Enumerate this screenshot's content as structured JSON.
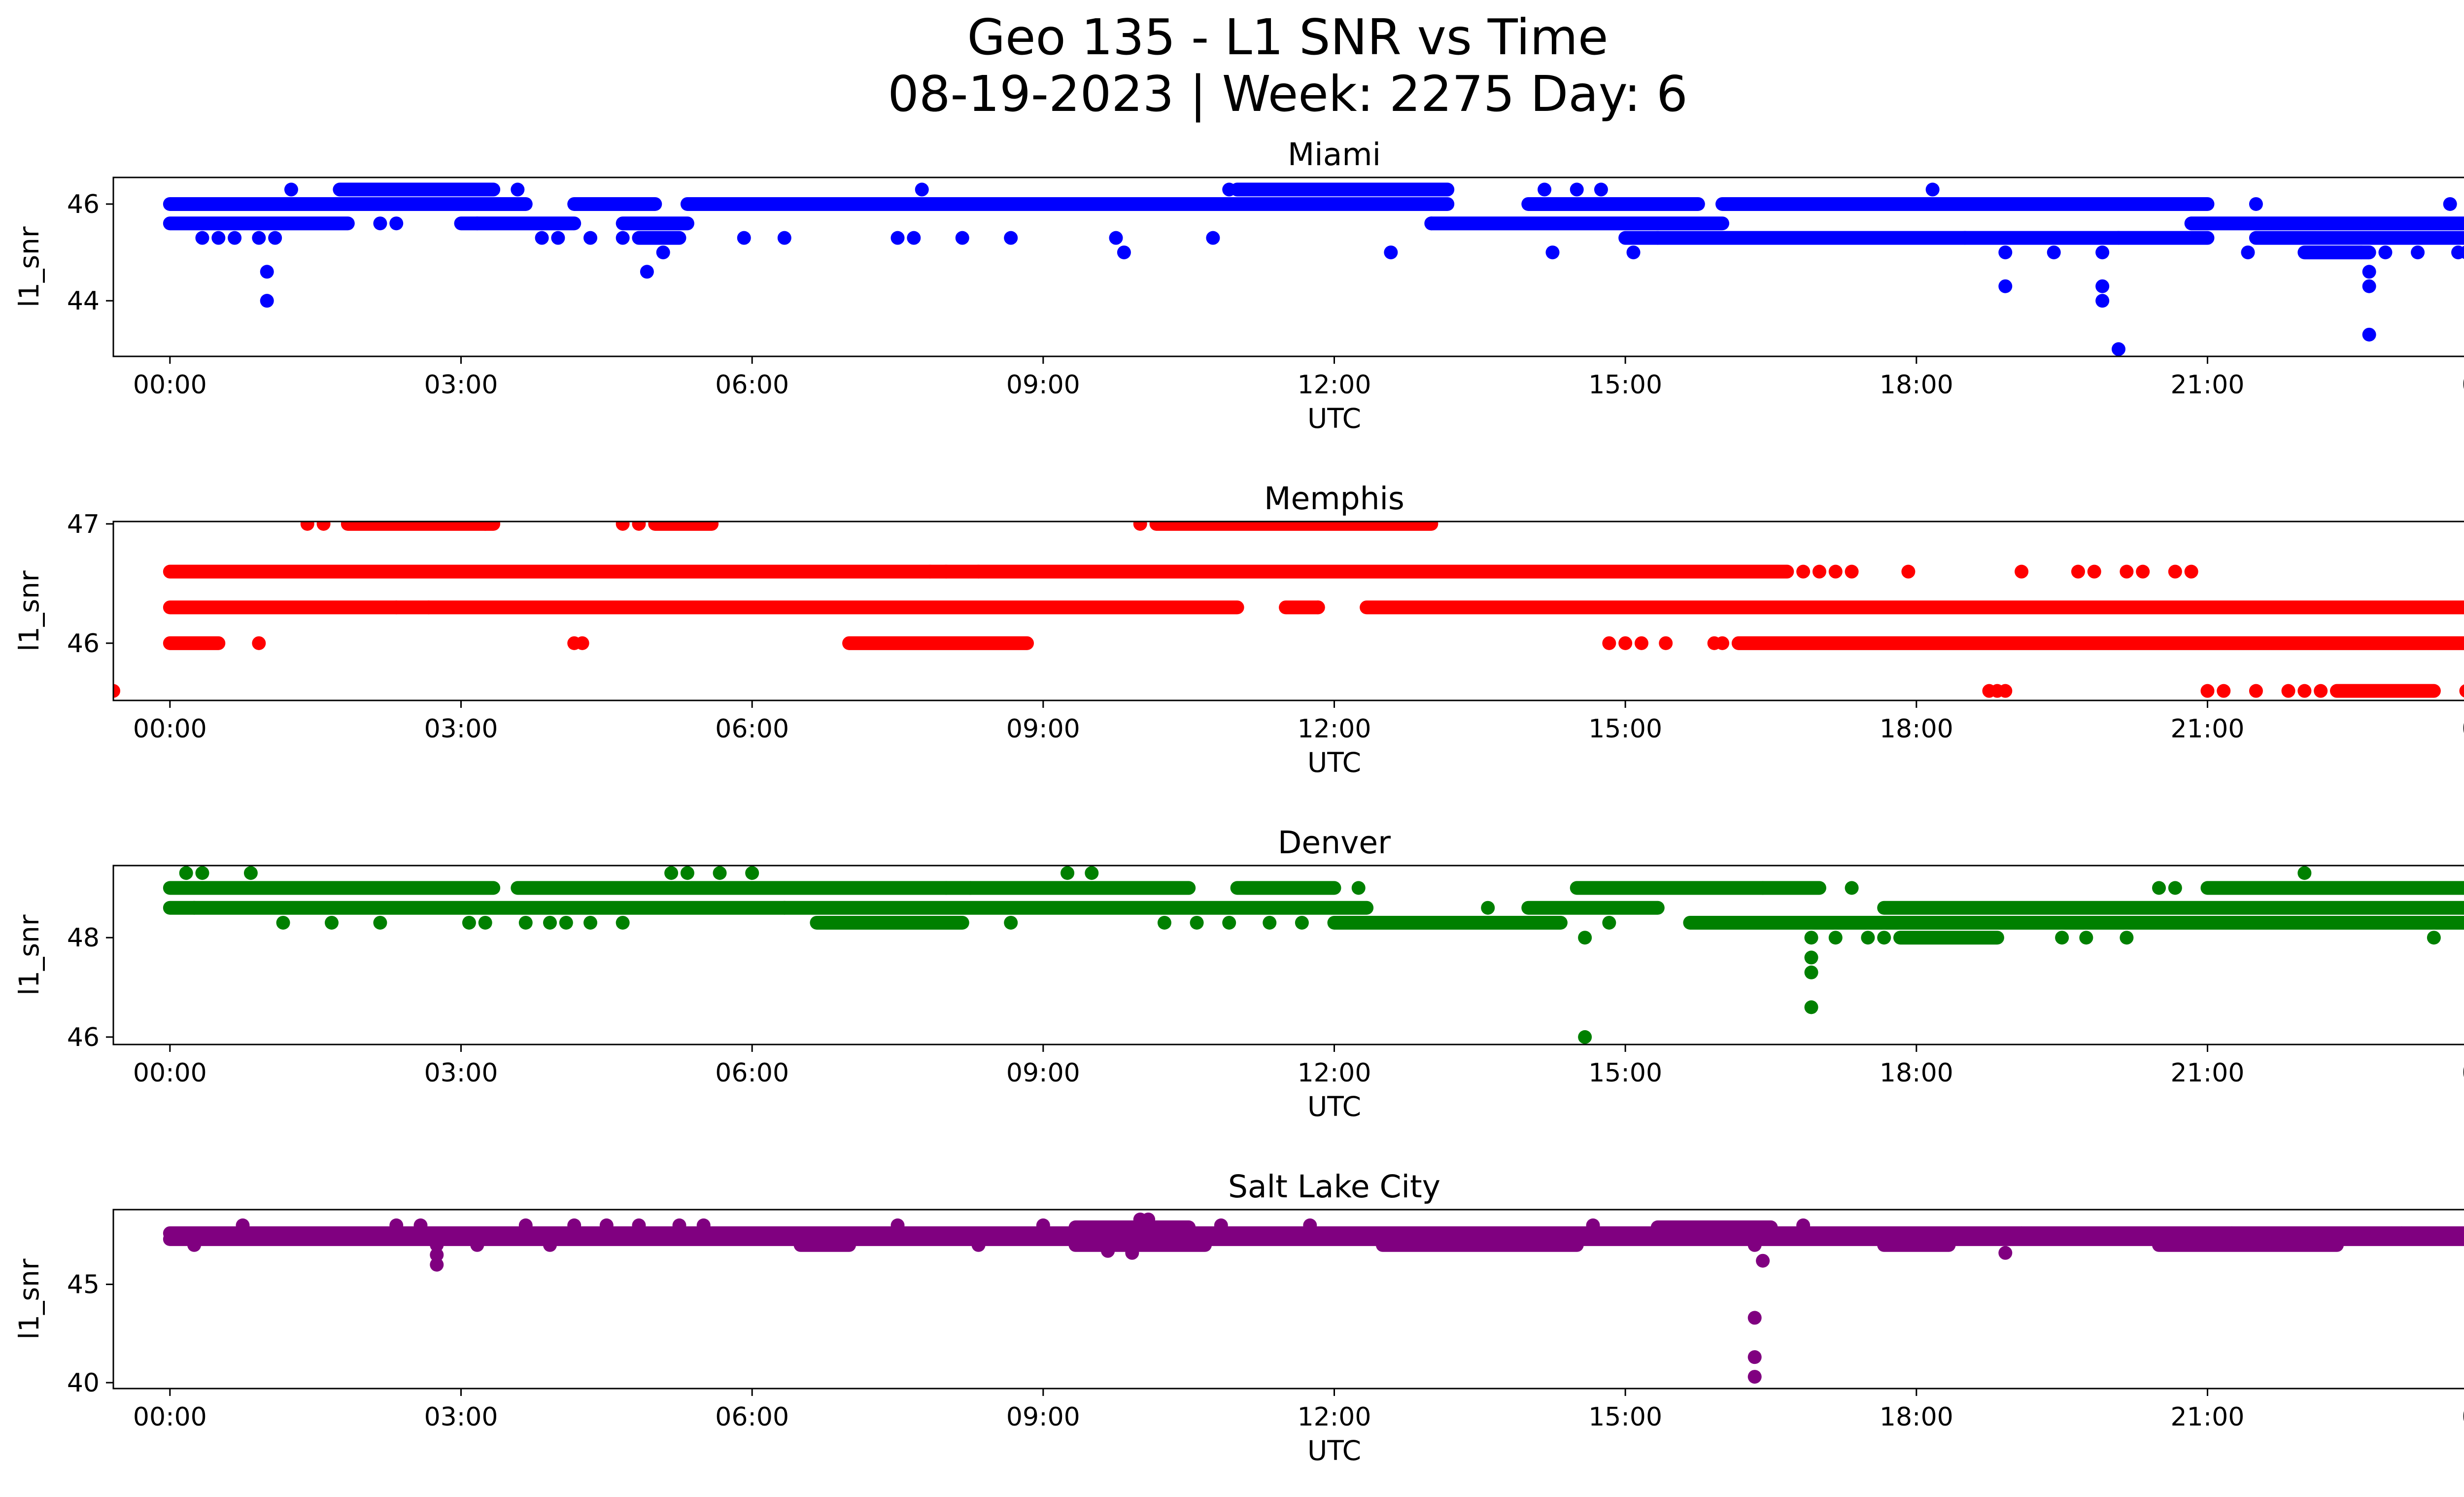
{
  "title_line1": "Geo 135 - L1 SNR vs Time",
  "title_line2": "08-19-2023 | Week: 2275 Day: 6",
  "chart_data": [
    {
      "type": "scatter",
      "title": "Miami",
      "color": "#0000ff",
      "xlabel": "UTC",
      "ylabel": "l1_snr",
      "xlim": [
        "23:25",
        "24:35"
      ],
      "ylim": [
        42.85,
        46.55
      ],
      "x_ticks": [
        "00:00",
        "03:00",
        "06:00",
        "09:00",
        "12:00",
        "15:00",
        "18:00",
        "21:00",
        "00:00"
      ],
      "y_ticks": [
        44,
        46
      ],
      "bands": [
        {
          "y": 46.0,
          "segments": [
            [
              "00:00",
              "03:40"
            ],
            [
              "04:10",
              "05:00"
            ],
            [
              "05:20",
              "13:10"
            ],
            [
              "14:00",
              "15:45"
            ],
            [
              "16:00",
              "21:00"
            ]
          ]
        },
        {
          "y": 45.6,
          "segments": [
            [
              "00:00",
              "01:50"
            ],
            [
              "03:00",
              "04:10"
            ],
            [
              "04:40",
              "05:20"
            ],
            [
              "13:00",
              "16:00"
            ],
            [
              "20:50",
              "24:00"
            ]
          ]
        },
        {
          "y": 45.3,
          "segments": [
            [
              "04:50",
              "05:15"
            ],
            [
              "15:00",
              "21:00"
            ],
            [
              "21:30",
              "24:00"
            ]
          ]
        },
        {
          "y": 45.0,
          "segments": [
            [
              "22:00",
              "22:40"
            ],
            [
              "23:40",
              "24:00"
            ]
          ]
        },
        {
          "y": 46.3,
          "segments": [
            [
              "01:45",
              "03:20"
            ],
            [
              "11:00",
              "13:10"
            ]
          ]
        }
      ],
      "points": [
        [
          "00:20",
          45.3
        ],
        [
          "00:30",
          45.3
        ],
        [
          "00:40",
          45.3
        ],
        [
          "00:55",
          45.3
        ],
        [
          "01:05",
          45.3
        ],
        [
          "01:00",
          44.6
        ],
        [
          "01:00",
          44.0
        ],
        [
          "01:15",
          46.3
        ],
        [
          "02:10",
          45.6
        ],
        [
          "02:20",
          45.6
        ],
        [
          "03:10",
          45.6
        ],
        [
          "03:35",
          46.3
        ],
        [
          "03:50",
          45.3
        ],
        [
          "04:00",
          45.3
        ],
        [
          "04:20",
          45.3
        ],
        [
          "04:40",
          45.3
        ],
        [
          "04:55",
          44.6
        ],
        [
          "05:05",
          45.0
        ],
        [
          "05:55",
          45.3
        ],
        [
          "06:20",
          45.3
        ],
        [
          "07:30",
          45.3
        ],
        [
          "07:40",
          45.3
        ],
        [
          "07:45",
          46.3
        ],
        [
          "08:10",
          45.3
        ],
        [
          "08:40",
          45.3
        ],
        [
          "09:45",
          45.3
        ],
        [
          "09:50",
          45.0
        ],
        [
          "10:45",
          45.3
        ],
        [
          "10:55",
          46.3
        ],
        [
          "11:10",
          46.3
        ],
        [
          "11:40",
          46.3
        ],
        [
          "12:35",
          45.0
        ],
        [
          "13:00",
          45.6
        ],
        [
          "14:10",
          46.3
        ],
        [
          "14:15",
          45.0
        ],
        [
          "14:30",
          46.3
        ],
        [
          "14:45",
          46.3
        ],
        [
          "15:05",
          45.0
        ],
        [
          "15:20",
          45.3
        ],
        [
          "18:10",
          46.3
        ],
        [
          "18:30",
          45.3
        ],
        [
          "18:55",
          44.3
        ],
        [
          "18:55",
          45.0
        ],
        [
          "19:25",
          45.0
        ],
        [
          "19:55",
          44.3
        ],
        [
          "19:55",
          44.0
        ],
        [
          "19:55",
          45.0
        ],
        [
          "20:05",
          43.0
        ],
        [
          "20:05",
          45.3
        ],
        [
          "21:30",
          46.0
        ],
        [
          "21:25",
          45.0
        ],
        [
          "22:40",
          44.6
        ],
        [
          "22:40",
          44.3
        ],
        [
          "22:40",
          43.3
        ],
        [
          "22:35",
          45.0
        ],
        [
          "22:50",
          45.0
        ],
        [
          "23:10",
          45.0
        ],
        [
          "23:30",
          46.0
        ],
        [
          "23:35",
          45.0
        ],
        [
          "23:55",
          46.0
        ],
        [
          "24:00",
          45.6
        ],
        [
          "24:00",
          45.0
        ]
      ]
    },
    {
      "type": "scatter",
      "title": "Memphis",
      "color": "#ff0000",
      "xlabel": "UTC",
      "ylabel": "l1_snr",
      "xlim": [
        "23:25",
        "24:35"
      ],
      "ylim": [
        45.52,
        47.02
      ],
      "x_ticks": [
        "00:00",
        "03:00",
        "06:00",
        "09:00",
        "12:00",
        "15:00",
        "18:00",
        "21:00",
        "00:00"
      ],
      "y_ticks": [
        46,
        47
      ],
      "bands": [
        {
          "y": 46.6,
          "segments": [
            [
              "00:00",
              "16:40"
            ]
          ]
        },
        {
          "y": 46.3,
          "segments": [
            [
              "00:00",
              "11:00"
            ],
            [
              "11:30",
              "11:50"
            ],
            [
              "12:20",
              "24:00"
            ]
          ]
        },
        {
          "y": 46.0,
          "segments": [
            [
              "00:00",
              "00:30"
            ],
            [
              "07:00",
              "08:50"
            ],
            [
              "16:10",
              "24:00"
            ]
          ]
        },
        {
          "y": 47.0,
          "segments": [
            [
              "01:50",
              "03:20"
            ],
            [
              "05:00",
              "05:35"
            ],
            [
              "10:10",
              "13:00"
            ]
          ]
        },
        {
          "y": 45.6,
          "segments": [
            [
              "22:20",
              "23:20"
            ]
          ]
        }
      ],
      "points": [
        [
          "00:55",
          46.0
        ],
        [
          "01:25",
          47.0
        ],
        [
          "01:35",
          47.0
        ],
        [
          "02:20",
          46.3
        ],
        [
          "02:40",
          46.3
        ],
        [
          "03:15",
          47.0
        ],
        [
          "04:10",
          46.0
        ],
        [
          "04:15",
          46.0
        ],
        [
          "04:40",
          47.0
        ],
        [
          "04:50",
          47.0
        ],
        [
          "07:50",
          46.6
        ],
        [
          "08:00",
          46.6
        ],
        [
          "08:20",
          46.6
        ],
        [
          "10:00",
          47.0
        ],
        [
          "11:50",
          46.3
        ],
        [
          "14:50",
          46.0
        ],
        [
          "15:00",
          46.0
        ],
        [
          "15:10",
          46.0
        ],
        [
          "15:25",
          46.0
        ],
        [
          "15:55",
          46.0
        ],
        [
          "16:00",
          46.0
        ],
        [
          "16:50",
          46.6
        ],
        [
          "17:00",
          46.6
        ],
        [
          "17:10",
          46.6
        ],
        [
          "17:20",
          46.6
        ],
        [
          "17:55",
          46.6
        ],
        [
          "18:45",
          45.6
        ],
        [
          "18:50",
          45.6
        ],
        [
          "18:55",
          45.6
        ],
        [
          "19:05",
          46.6
        ],
        [
          "19:40",
          46.6
        ],
        [
          "19:50",
          46.6
        ],
        [
          "20:10",
          46.6
        ],
        [
          "20:20",
          46.6
        ],
        [
          "20:40",
          46.6
        ],
        [
          "20:50",
          46.6
        ],
        [
          "21:00",
          45.6
        ],
        [
          "21:10",
          45.6
        ],
        [
          "21:30",
          45.6
        ],
        [
          "21:50",
          45.6
        ],
        [
          "22:00",
          45.6
        ],
        [
          "22:10",
          45.6
        ],
        [
          "23:25",
          45.6
        ],
        [
          "23:40",
          45.6
        ],
        [
          "23:50",
          45.6
        ]
      ]
    },
    {
      "type": "scatter",
      "title": "Denver",
      "color": "#008000",
      "xlabel": "UTC",
      "ylabel": "l1_snr",
      "xlim": [
        "23:25",
        "24:35"
      ],
      "ylim": [
        45.85,
        49.45
      ],
      "x_ticks": [
        "00:00",
        "03:00",
        "06:00",
        "09:00",
        "12:00",
        "15:00",
        "18:00",
        "21:00",
        "00:00"
      ],
      "y_ticks": [
        46,
        48
      ],
      "bands": [
        {
          "y": 49.0,
          "segments": [
            [
              "00:00",
              "03:20"
            ],
            [
              "03:35",
              "10:30"
            ],
            [
              "11:00",
              "12:00"
            ],
            [
              "14:30",
              "17:00"
            ],
            [
              "21:00",
              "23:40"
            ]
          ]
        },
        {
          "y": 48.6,
          "segments": [
            [
              "00:00",
              "12:20"
            ],
            [
              "14:00",
              "15:20"
            ],
            [
              "17:40",
              "24:00"
            ]
          ]
        },
        {
          "y": 48.3,
          "segments": [
            [
              "06:40",
              "08:10"
            ],
            [
              "12:00",
              "14:20"
            ],
            [
              "15:40",
              "24:00"
            ]
          ]
        },
        {
          "y": 48.0,
          "segments": [
            [
              "17:50",
              "18:50"
            ]
          ]
        }
      ],
      "points": [
        [
          "00:10",
          49.3
        ],
        [
          "00:20",
          49.3
        ],
        [
          "00:50",
          49.3
        ],
        [
          "00:15",
          48.6
        ],
        [
          "01:10",
          48.3
        ],
        [
          "01:40",
          48.3
        ],
        [
          "02:10",
          48.3
        ],
        [
          "03:05",
          48.3
        ],
        [
          "03:15",
          48.3
        ],
        [
          "03:40",
          48.3
        ],
        [
          "03:55",
          48.3
        ],
        [
          "04:05",
          48.3
        ],
        [
          "04:20",
          48.3
        ],
        [
          "04:40",
          48.3
        ],
        [
          "05:10",
          49.3
        ],
        [
          "05:20",
          49.3
        ],
        [
          "05:40",
          49.3
        ],
        [
          "06:00",
          49.3
        ],
        [
          "06:20",
          48.6
        ],
        [
          "08:00",
          49.0
        ],
        [
          "08:15",
          49.0
        ],
        [
          "08:40",
          48.3
        ],
        [
          "09:15",
          49.3
        ],
        [
          "09:30",
          49.3
        ],
        [
          "10:15",
          48.3
        ],
        [
          "10:35",
          48.3
        ],
        [
          "10:55",
          48.3
        ],
        [
          "11:20",
          48.3
        ],
        [
          "11:40",
          48.3
        ],
        [
          "12:15",
          49.0
        ],
        [
          "13:35",
          48.6
        ],
        [
          "14:35",
          48.0
        ],
        [
          "14:35",
          46.0
        ],
        [
          "14:50",
          48.3
        ],
        [
          "16:25",
          49.0
        ],
        [
          "16:55",
          48.0
        ],
        [
          "16:55",
          47.6
        ],
        [
          "16:55",
          47.3
        ],
        [
          "16:55",
          46.6
        ],
        [
          "17:10",
          48.0
        ],
        [
          "17:20",
          49.0
        ],
        [
          "17:30",
          48.0
        ],
        [
          "17:40",
          48.0
        ],
        [
          "19:30",
          48.0
        ],
        [
          "19:45",
          48.0
        ],
        [
          "20:10",
          48.0
        ],
        [
          "20:30",
          49.0
        ],
        [
          "20:40",
          49.0
        ],
        [
          "22:00",
          49.3
        ],
        [
          "23:20",
          48.0
        ],
        [
          "23:45",
          49.0
        ]
      ]
    },
    {
      "type": "scatter",
      "title": "Salt Lake City",
      "color": "#800080",
      "xlabel": "UTC",
      "ylabel": "l1_snr",
      "xlim": [
        "23:25",
        "24:35"
      ],
      "ylim": [
        39.7,
        48.8
      ],
      "x_ticks": [
        "00:00",
        "03:00",
        "06:00",
        "09:00",
        "12:00",
        "15:00",
        "18:00",
        "21:00",
        "00:00"
      ],
      "y_ticks": [
        40,
        45
      ],
      "bands": [
        {
          "y": 47.6,
          "segments": [
            [
              "00:00",
              "24:00"
            ]
          ]
        },
        {
          "y": 47.3,
          "segments": [
            [
              "00:00",
              "24:00"
            ]
          ]
        },
        {
          "y": 47.0,
          "segments": [
            [
              "06:30",
              "07:00"
            ],
            [
              "09:20",
              "10:40"
            ],
            [
              "12:30",
              "14:30"
            ],
            [
              "17:40",
              "18:20"
            ],
            [
              "20:30",
              "22:20"
            ]
          ]
        },
        {
          "y": 47.9,
          "segments": [
            [
              "09:20",
              "10:30"
            ],
            [
              "15:20",
              "16:30"
            ]
          ]
        }
      ],
      "points": [
        [
          "00:15",
          47.0
        ],
        [
          "00:45",
          48.0
        ],
        [
          "02:20",
          48.0
        ],
        [
          "02:35",
          48.0
        ],
        [
          "02:45",
          47.0
        ],
        [
          "02:45",
          46.5
        ],
        [
          "02:45",
          46.0
        ],
        [
          "03:10",
          47.0
        ],
        [
          "03:40",
          48.0
        ],
        [
          "03:55",
          47.0
        ],
        [
          "04:10",
          48.0
        ],
        [
          "04:30",
          48.0
        ],
        [
          "04:50",
          48.0
        ],
        [
          "05:15",
          48.0
        ],
        [
          "05:30",
          48.0
        ],
        [
          "07:30",
          48.0
        ],
        [
          "08:20",
          47.0
        ],
        [
          "09:00",
          48.0
        ],
        [
          "09:40",
          46.7
        ],
        [
          "09:55",
          46.6
        ],
        [
          "10:00",
          48.3
        ],
        [
          "10:05",
          48.3
        ],
        [
          "10:50",
          48.0
        ],
        [
          "11:45",
          48.0
        ],
        [
          "14:40",
          48.0
        ],
        [
          "16:20",
          47.0
        ],
        [
          "16:25",
          46.2
        ],
        [
          "16:20",
          43.3
        ],
        [
          "16:20",
          41.3
        ],
        [
          "16:20",
          40.3
        ],
        [
          "16:50",
          48.0
        ],
        [
          "18:55",
          46.6
        ],
        [
          "19:05",
          47.6
        ],
        [
          "21:15",
          47.6
        ],
        [
          "23:00",
          47.6
        ]
      ]
    }
  ]
}
